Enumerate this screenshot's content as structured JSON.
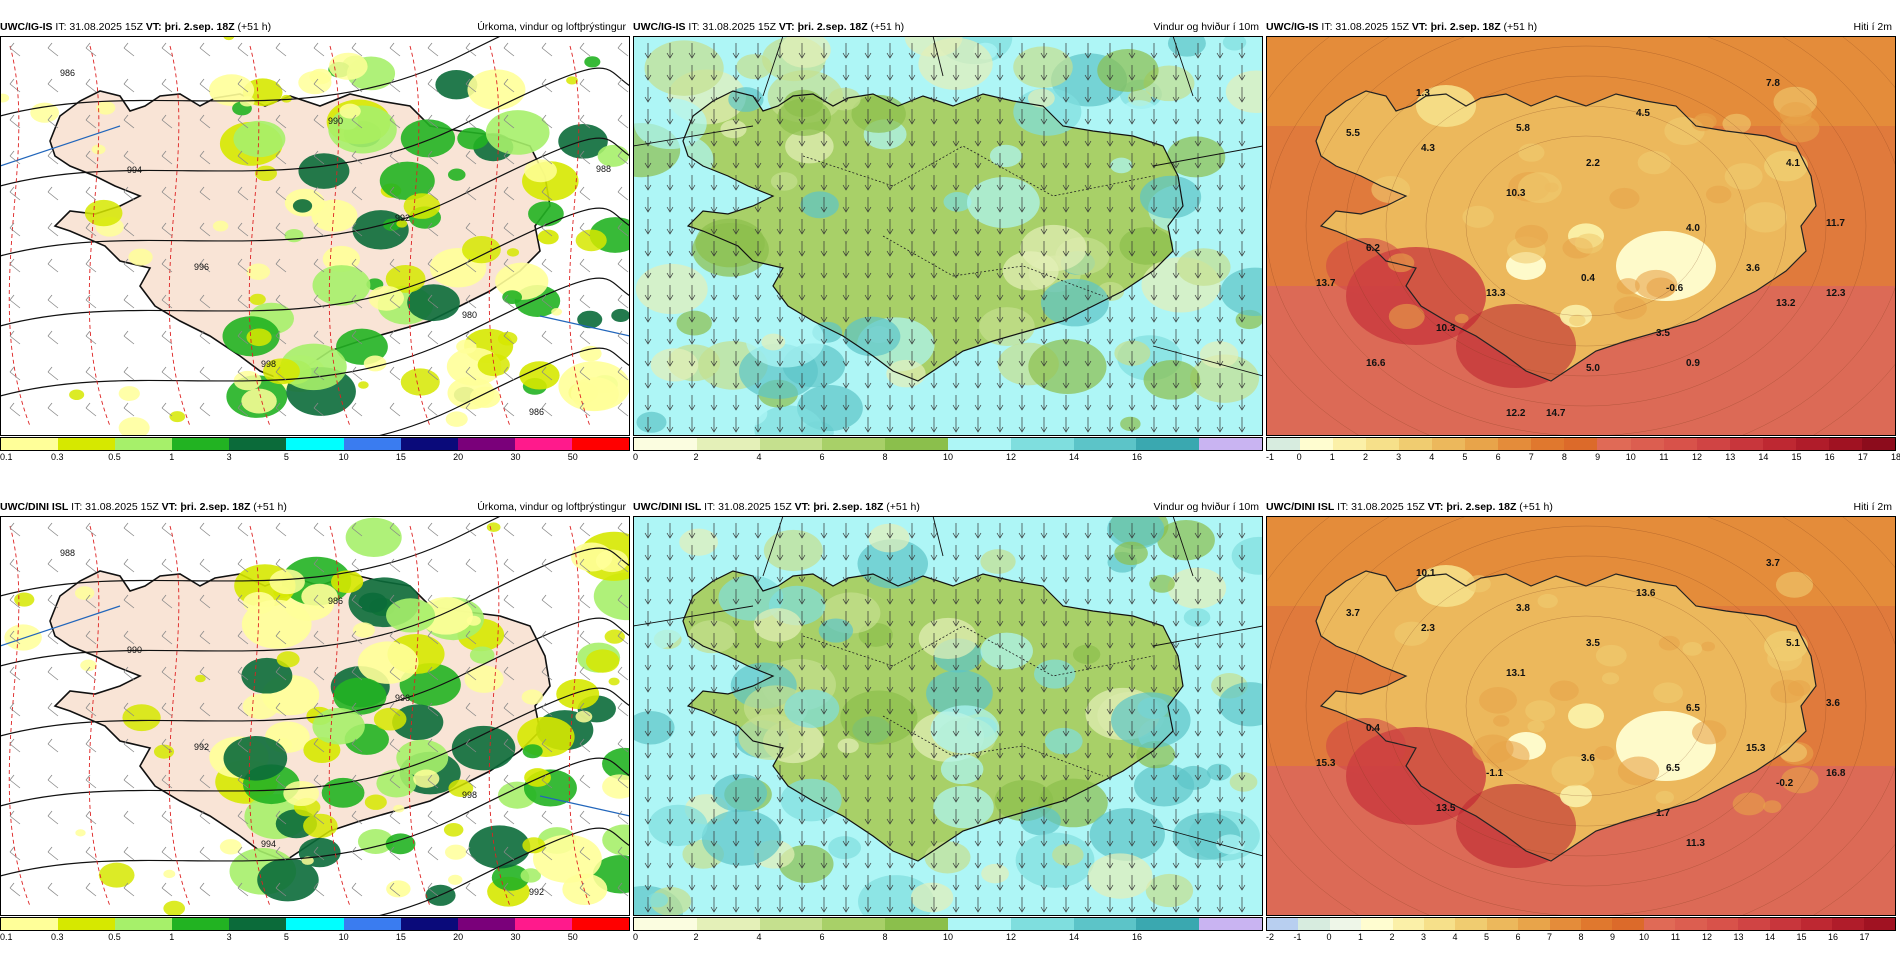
{
  "panels": [
    {
      "id": "r0c0",
      "model": "UWC/IG-IS",
      "it": "IT: 31.08.2025 15Z",
      "vt_label": "VT:",
      "vt": "þri. 2.sep. 18Z",
      "lead": "(+51 h)",
      "title": "Úrkoma, vindur og loftþrýstingur",
      "type": "precip",
      "colorbar": {
        "colors": [
          "#ffff99",
          "#d6e800",
          "#a6f06a",
          "#22b322",
          "#0b6b3a",
          "#00ffff",
          "#3a7cf0",
          "#0a0a7a",
          "#7a007a",
          "#ff1a8c",
          "#ff0000"
        ],
        "ticks": [
          "0.1",
          "0.3",
          "0.5",
          "1",
          "3",
          "5",
          "10",
          "15",
          "20",
          "30",
          "50"
        ]
      },
      "isobar_labels": [
        "986",
        "994",
        "996",
        "998",
        "990",
        "992",
        "980",
        "986",
        "988"
      ],
      "temp_labels": []
    },
    {
      "id": "r0c1",
      "model": "UWC/IG-IS",
      "it": "IT: 31.08.2025 15Z",
      "vt_label": "VT:",
      "vt": "þri. 2.sep. 18Z",
      "lead": "(+51 h)",
      "title": "Vindur og hviður í 10m",
      "type": "wind",
      "colorbar": {
        "colors": [
          "#fbfde0",
          "#e4f0b8",
          "#c5e08e",
          "#a8d068",
          "#8bbf4c",
          "#aef6f6",
          "#7fdede",
          "#5cc4c8",
          "#3aa8b0",
          "#c9b4f2"
        ],
        "ticks": [
          "0",
          "2",
          "4",
          "6",
          "8",
          "10",
          "12",
          "14",
          "16"
        ]
      },
      "isobar_labels": [],
      "temp_labels": []
    },
    {
      "id": "r0c2",
      "model": "UWC/IG-IS",
      "it": "IT: 31.08.2025 15Z",
      "vt_label": "VT:",
      "vt": "þri. 2.sep. 18Z",
      "lead": "(+51 h)",
      "title": "Hiti í 2m",
      "type": "temp",
      "colorbar": {
        "colors": [
          "#d7ecdf",
          "#fffdd0",
          "#fbf0a8",
          "#f6e08a",
          "#f0cc70",
          "#ecb85c",
          "#e8a44a",
          "#e48c3a",
          "#e0782e",
          "#dc6a2a",
          "#e06a56",
          "#dc5e50",
          "#d8524a",
          "#d04444",
          "#c8363c",
          "#be2832",
          "#b01c2a",
          "#a01222",
          "#8c0c1c"
        ],
        "ticks": [
          "-1",
          "0",
          "1",
          "2",
          "3",
          "4",
          "5",
          "6",
          "7",
          "8",
          "9",
          "10",
          "11",
          "12",
          "13",
          "14",
          "15",
          "16",
          "17",
          "18"
        ]
      },
      "isobar_labels": [],
      "temp_labels": [
        "1.3",
        "7.8",
        "5.5",
        "5.8",
        "4.5",
        "4.3",
        "2.2",
        "4.1",
        "10.3",
        "11.7",
        "4.0",
        "6.2",
        "3.6",
        "13.7",
        "13.3",
        "0.4",
        "-0.6",
        "12.3",
        "13.2",
        "10.3",
        "3.5",
        "0.9",
        "16.6",
        "5.0",
        "12.2",
        "14.7"
      ]
    },
    {
      "id": "r1c0",
      "model": "UWC/DINI ISL",
      "it": "IT: 31.08.2025 15Z",
      "vt_label": "VT:",
      "vt": "þri. 2.sep. 18Z",
      "lead": "(+51 h)",
      "title": "Úrkoma, vindur og loftþrýstingur",
      "type": "precip",
      "colorbar": {
        "colors": [
          "#ffff99",
          "#d6e800",
          "#a6f06a",
          "#22b322",
          "#0b6b3a",
          "#00ffff",
          "#3a7cf0",
          "#0a0a7a",
          "#7a007a",
          "#ff1a8c",
          "#ff0000"
        ],
        "ticks": [
          "0.1",
          "0.3",
          "0.5",
          "1",
          "3",
          "5",
          "10",
          "15",
          "20",
          "30",
          "50"
        ]
      },
      "isobar_labels": [
        "988",
        "990",
        "992",
        "994",
        "986",
        "996",
        "998",
        "992"
      ],
      "temp_labels": []
    },
    {
      "id": "r1c1",
      "model": "UWC/DINI ISL",
      "it": "IT: 31.08.2025 15Z",
      "vt_label": "VT:",
      "vt": "þri. 2.sep. 18Z",
      "lead": "(+51 h)",
      "title": "Vindur og hviður í 10m",
      "type": "wind",
      "colorbar": {
        "colors": [
          "#fbfde0",
          "#e4f0b8",
          "#c5e08e",
          "#a8d068",
          "#8bbf4c",
          "#aef6f6",
          "#7fdede",
          "#5cc4c8",
          "#3aa8b0",
          "#c9b4f2"
        ],
        "ticks": [
          "0",
          "2",
          "4",
          "6",
          "8",
          "10",
          "12",
          "14",
          "16"
        ]
      },
      "isobar_labels": [],
      "temp_labels": []
    },
    {
      "id": "r1c2",
      "model": "UWC/DINI ISL",
      "it": "IT: 31.08.2025 15Z",
      "vt_label": "VT:",
      "vt": "þri. 2.sep. 18Z",
      "lead": "(+51 h)",
      "title": "Hiti í 2m",
      "type": "temp",
      "colorbar": {
        "colors": [
          "#b8cff0",
          "#d7ecdf",
          "#eef6e8",
          "#fffdd0",
          "#fbf0a8",
          "#f6e08a",
          "#f0cc70",
          "#ecb85c",
          "#e8a44a",
          "#e48c3a",
          "#e0782e",
          "#dc6a2a",
          "#e06a56",
          "#dc5e50",
          "#d8524a",
          "#d04444",
          "#c8363c",
          "#be2832",
          "#b01c2a",
          "#a01222"
        ],
        "ticks": [
          "-2",
          "-1",
          "0",
          "1",
          "2",
          "3",
          "4",
          "5",
          "6",
          "7",
          "8",
          "9",
          "10",
          "11",
          "12",
          "13",
          "14",
          "15",
          "16",
          "17"
        ]
      },
      "isobar_labels": [],
      "temp_labels": [
        "10.1",
        "3.7",
        "3.7",
        "3.8",
        "13.6",
        "2.3",
        "3.5",
        "5.1",
        "13.1",
        "3.6",
        "6.5",
        "0.4",
        "15.3",
        "15.3",
        "-1.1",
        "3.6",
        "6.5",
        "16.8",
        "-0.2",
        "13.5",
        "1.7",
        "11.3"
      ]
    }
  ]
}
